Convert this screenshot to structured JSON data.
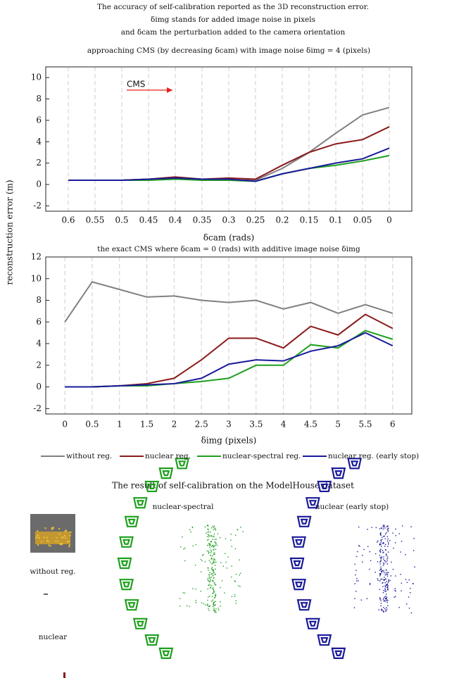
{
  "figure_title": [
    "The accuracy of self-calibration reported as the 3D reconstruction error.",
    "δimg stands for added image noise in pixels",
    "and δcam the perturbation added to the camera orientation"
  ],
  "y_label": "reconstruction error (m)",
  "chart_data": [
    {
      "type": "line",
      "title": "approaching CMS (by decreasing δcam) with image noise δimg = 4 (pixels)",
      "categories": [
        "0.6",
        "0.55",
        "0.5",
        "0.45",
        "0.4",
        "0.35",
        "0.3",
        "0.25",
        "0.2",
        "0.15",
        "0.1",
        "0.05",
        "0"
      ],
      "x_label": "δcam (rads)",
      "annotation": "CMS",
      "annotation_color": "#e8221b",
      "ylim": [
        -2.5,
        11
      ],
      "yticks": [
        -2,
        0,
        2,
        4,
        6,
        8,
        10
      ],
      "grid": true,
      "series": [
        {
          "name": "without reg.",
          "color": "#808080",
          "values": [
            0.4,
            0.4,
            0.4,
            0.5,
            0.6,
            0.5,
            0.4,
            0.4,
            1.5,
            3,
            4.8,
            6.5,
            7.2
          ]
        },
        {
          "name": "nuclear reg.",
          "color": "#8b1a1a",
          "values": [
            0.4,
            0.4,
            0.4,
            0.5,
            0.7,
            0.5,
            0.6,
            0.5,
            1.8,
            3,
            3.8,
            4.2,
            5.4
          ]
        },
        {
          "name": "nuclear-spectral reg.",
          "color": "#1ea01e",
          "values": [
            0.4,
            0.4,
            0.4,
            0.4,
            0.5,
            0.4,
            0.4,
            0.3,
            1,
            1.5,
            1.8,
            2.2,
            2.7
          ]
        },
        {
          "name": "nuclear reg. (early stop)",
          "color": "#1a1a9a",
          "values": [
            0.4,
            0.4,
            0.4,
            0.5,
            0.6,
            0.5,
            0.5,
            0.3,
            1,
            1.5,
            2,
            2.4,
            3.4
          ]
        }
      ]
    },
    {
      "type": "line",
      "title": "the exact CMS where δcam = 0 (rads) with additive image noise δimg",
      "x": [
        0,
        0.5,
        1,
        1.5,
        2,
        2.5,
        3,
        3.5,
        4,
        4.5,
        5,
        5.5,
        6
      ],
      "x_label": "δimg (pixels)",
      "xlim": [
        -0.35,
        6.35
      ],
      "xticks": [
        0,
        0.5,
        1,
        1.5,
        2,
        2.5,
        3,
        3.5,
        4,
        4.5,
        5,
        5.5,
        6
      ],
      "ylim": [
        -2.5,
        12
      ],
      "yticks": [
        -2,
        0,
        2,
        4,
        6,
        8,
        10,
        12
      ],
      "grid": true,
      "series": [
        {
          "name": "without reg.",
          "color": "#808080",
          "values": [
            6,
            9.7,
            9,
            8.3,
            8.4,
            8,
            7.8,
            8,
            7.2,
            7.8,
            6.8,
            7.6,
            6.8
          ]
        },
        {
          "name": "nuclear reg.",
          "color": "#8b1a1a",
          "values": [
            0,
            0,
            0.1,
            0.3,
            0.8,
            2.5,
            4.5,
            4.5,
            3.6,
            5.6,
            4.8,
            6.7,
            5.4
          ]
        },
        {
          "name": "nuclear-spectral reg.",
          "color": "#1ea01e",
          "values": [
            0,
            0,
            0.1,
            0.1,
            0.3,
            0.5,
            0.8,
            2,
            2,
            3.9,
            3.6,
            5.2,
            4.4
          ]
        },
        {
          "name": "nuclear reg. (early stop)",
          "color": "#1a1a9a",
          "values": [
            0,
            0,
            0.1,
            0.2,
            0.3,
            0.8,
            2.1,
            2.5,
            2.4,
            3.3,
            3.8,
            5,
            3.8
          ]
        }
      ]
    }
  ],
  "results": {
    "title": "The result of self-calibration on the ModelHouse dataset",
    "labels": [
      "nuclear-spectral",
      "nuclear (early stop)",
      "without reg.",
      "nuclear"
    ]
  }
}
